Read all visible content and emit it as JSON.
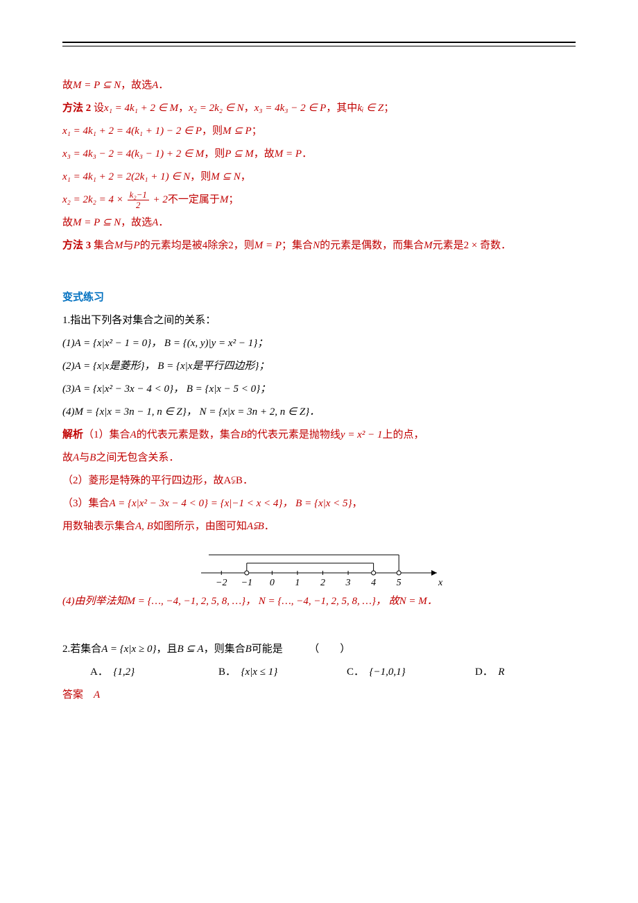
{
  "p1_a": "故",
  "p1_b": "M = P ⊆ N",
  "p1_c": "，故选",
  "p1_d": "A",
  "p1_e": "．",
  "m2_label": "方法 2",
  "m2_a": " 设",
  "m2_x1": "x₁ = 4k₁ + 2 ∈ M",
  "m2_b": "，",
  "m2_x2": "x₂ = 2k₂ ∈ N",
  "m2_c": "，",
  "m2_x3": "x₃ = 4k₃ − 2 ∈ P",
  "m2_d": "，其中",
  "m2_ki": "kᵢ ∈ Z",
  "m2_e": "；",
  "l3_a": "x₁ = 4k₁ + 2 = 4(k₁ + 1) − 2 ∈ P",
  "l3_b": "，则",
  "l3_c": "M ⊆ P",
  "l3_d": "；",
  "l4_a": "x₃ = 4k₃ − 2 = 4(k₃ − 1) + 2 ∈ M",
  "l4_b": "，则",
  "l4_c": "P ⊆ M",
  "l4_d": "，故",
  "l4_e": "M = P",
  "l4_f": "．",
  "l5_a": "x₁ = 4k₁ + 2 = 2(2k₁ + 1) ∈ N",
  "l5_b": "，则",
  "l5_c": "M ⊆ N",
  "l5_d": "，",
  "l6_pre": "x₂ = 2k₂ = 4 × ",
  "l6_num": "k₂−1",
  "l6_den": "2",
  "l6_post": " + 2",
  "l6_tail": "不一定属于",
  "l6_M": "M",
  "l6_semi": "；",
  "l7_a": "故",
  "l7_b": "M = P ⊆ N",
  "l7_c": "，故选",
  "l7_d": "A",
  "l7_e": "．",
  "m3_label": "方法 3",
  "m3_a": " 集合",
  "m3_M": "M",
  "m3_b": "与",
  "m3_P": "P",
  "m3_c": "的元素均是被",
  "m3_4": "4",
  "m3_d": "除余",
  "m3_2": "2",
  "m3_e": "，则",
  "m3_MP": "M = P",
  "m3_f": "；集合",
  "m3_N": "N",
  "m3_g": "的元素是偶数，而集合",
  "m3_M2": "M",
  "m3_h": "元素是",
  "m3_i": "2 × 奇数",
  "m3_j": "．",
  "var_title": "变式练习",
  "q1_head": "1.指出下列各对集合之间的关系：",
  "q1_1": "(1)A = {x|x² − 1 = 0}， B = {(x, y)|y = x² − 1}；",
  "q1_2": "(2)A = {x|x是菱形}， B = {x|x是平行四边形}；",
  "q1_3": "(3)A = {x|x² − 3x − 4 < 0}， B = {x|x − 5 < 0}；",
  "q1_4": "(4)M = {x|x = 3n − 1, n ∈ Z}， N = {x|x = 3n + 2, n ∈ Z}．",
  "ans_label": "解析",
  "a1_1a": "（1）集合",
  "a1_1b": "A",
  "a1_1c": "的代表元素是数，集合",
  "a1_1d": "B",
  "a1_1e": "的代表元素是抛物线",
  "a1_1f": "y = x² − 1",
  "a1_1g": "上的点，",
  "a1_1h": "故",
  "a1_1i": "A",
  "a1_1j": "与",
  "a1_1k": "B",
  "a1_1l": "之间无包含关系．",
  "a1_2": "（2）菱形是特殊的平行四边形，故A⫋B．",
  "a1_3a": "（3）集合",
  "a1_3b": "A = {x|x² − 3x − 4 < 0} = {x|−1 < x < 4}， B = {x|x < 5}",
  "a1_3c": "，",
  "a1_3d": "用数轴表示集合",
  "a1_3e": "A, B",
  "a1_3f": "如图所示，由图可知",
  "a1_3g": "A⫋B",
  "a1_3h": "．",
  "axis": {
    "ticks": [
      "−2",
      "−1",
      "0",
      "1",
      "2",
      "3",
      "4",
      "5"
    ],
    "x_label": "x",
    "inner_left": -1,
    "inner_right": 4,
    "outer_right": 5,
    "x_min": -2.8,
    "x_max": 6.5,
    "axis_color": "#000000",
    "tick_fontsize": 14
  },
  "a1_4": "(4)由列举法知M = {…, −4, −1, 2, 5, 8, …}， N = {…, −4, −1, 2, 5, 8, …}， 故N = M．",
  "q2_a": "2.若集合",
  "q2_b": "A = {x|x ≥ 0}",
  "q2_c": "，且",
  "q2_d": "B ⊆ A",
  "q2_e": "，则集合",
  "q2_f": "B",
  "q2_g": "可能是　　　（　　）",
  "optA_l": "A．",
  "optA_v": "{1,2}",
  "optB_l": "B．",
  "optB_v": "{x|x ≤ 1}",
  "optC_l": "C．",
  "optC_v": "{−1,0,1}",
  "optD_l": "D．",
  "optD_v": "R",
  "ans2_label": "答案",
  "ans2_val": "A"
}
